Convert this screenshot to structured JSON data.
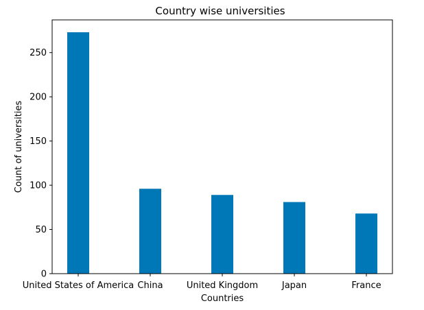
{
  "chart_data": {
    "type": "bar",
    "title": "Country wise universities",
    "xlabel": "Countries",
    "ylabel": "Count of universities",
    "categories": [
      "United States of America",
      "China",
      "United Kingdom",
      "Japan",
      "France"
    ],
    "values": [
      273,
      96,
      89,
      81,
      68
    ],
    "ylim": [
      0,
      287
    ],
    "yticks": [
      0,
      50,
      100,
      150,
      200,
      250
    ],
    "grid": false,
    "bar_color": "#0077b6"
  }
}
